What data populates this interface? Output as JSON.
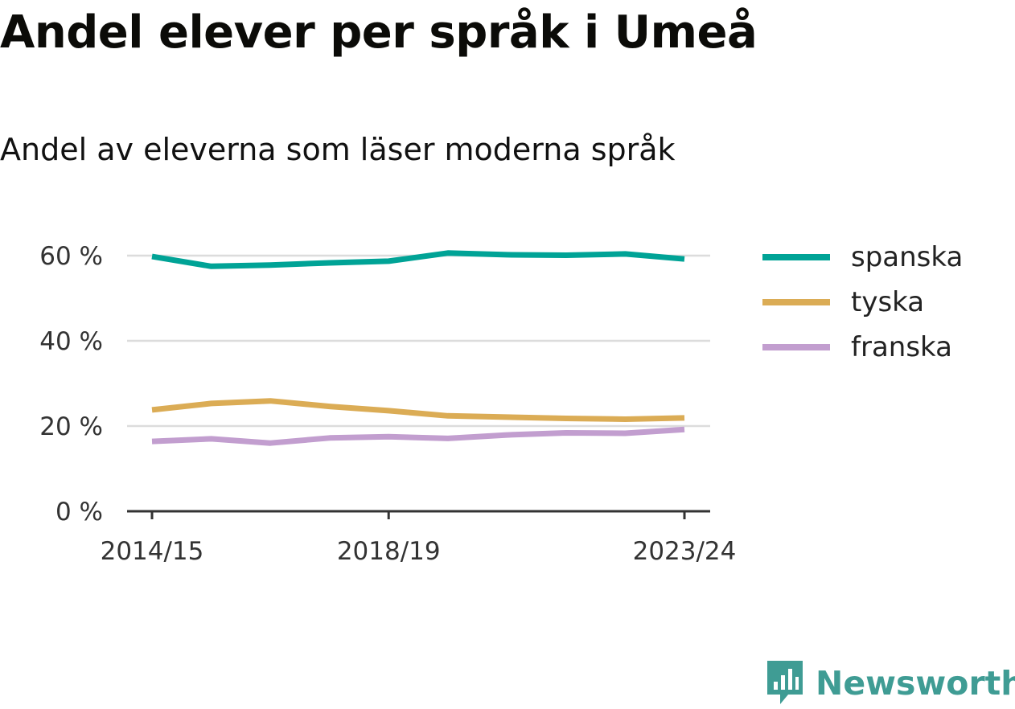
{
  "colors": {
    "spanska": "#00a396",
    "tyska": "#dbac55",
    "franska": "#c29ecf",
    "brand": "#3f9c94"
  },
  "chart_data": {
    "type": "line",
    "title": "Andel elever per språk i Umeå",
    "subtitle": "Andel av eleverna som läser moderna språk",
    "x": [
      "2014/15",
      "2015/16",
      "2016/17",
      "2017/18",
      "2018/19",
      "2019/20",
      "2020/21",
      "2021/22",
      "2022/23",
      "2023/24"
    ],
    "x_tick_labels": [
      "2014/15",
      "2018/19",
      "2023/24"
    ],
    "y_ticks": [
      0,
      20,
      40,
      60
    ],
    "y_tick_labels": [
      "0 %",
      "20 %",
      "40 %",
      "60 %"
    ],
    "ylim": [
      0,
      65
    ],
    "grid": true,
    "legend_position": "right",
    "series": [
      {
        "name": "spanska",
        "color": "#00a396",
        "values": [
          59.8,
          57.5,
          57.8,
          58.3,
          58.7,
          60.6,
          60.2,
          60.1,
          60.4,
          59.2
        ]
      },
      {
        "name": "tyska",
        "color": "#dbac55",
        "values": [
          23.8,
          25.3,
          25.9,
          24.6,
          23.6,
          22.4,
          22.1,
          21.8,
          21.6,
          21.9
        ]
      },
      {
        "name": "franska",
        "color": "#c29ecf",
        "values": [
          16.4,
          17.0,
          16.0,
          17.2,
          17.5,
          17.1,
          17.9,
          18.4,
          18.3,
          19.2
        ]
      }
    ]
  },
  "brand": {
    "name": "Newsworthy",
    "logo_icon": "newsworthy-logo-icon"
  }
}
